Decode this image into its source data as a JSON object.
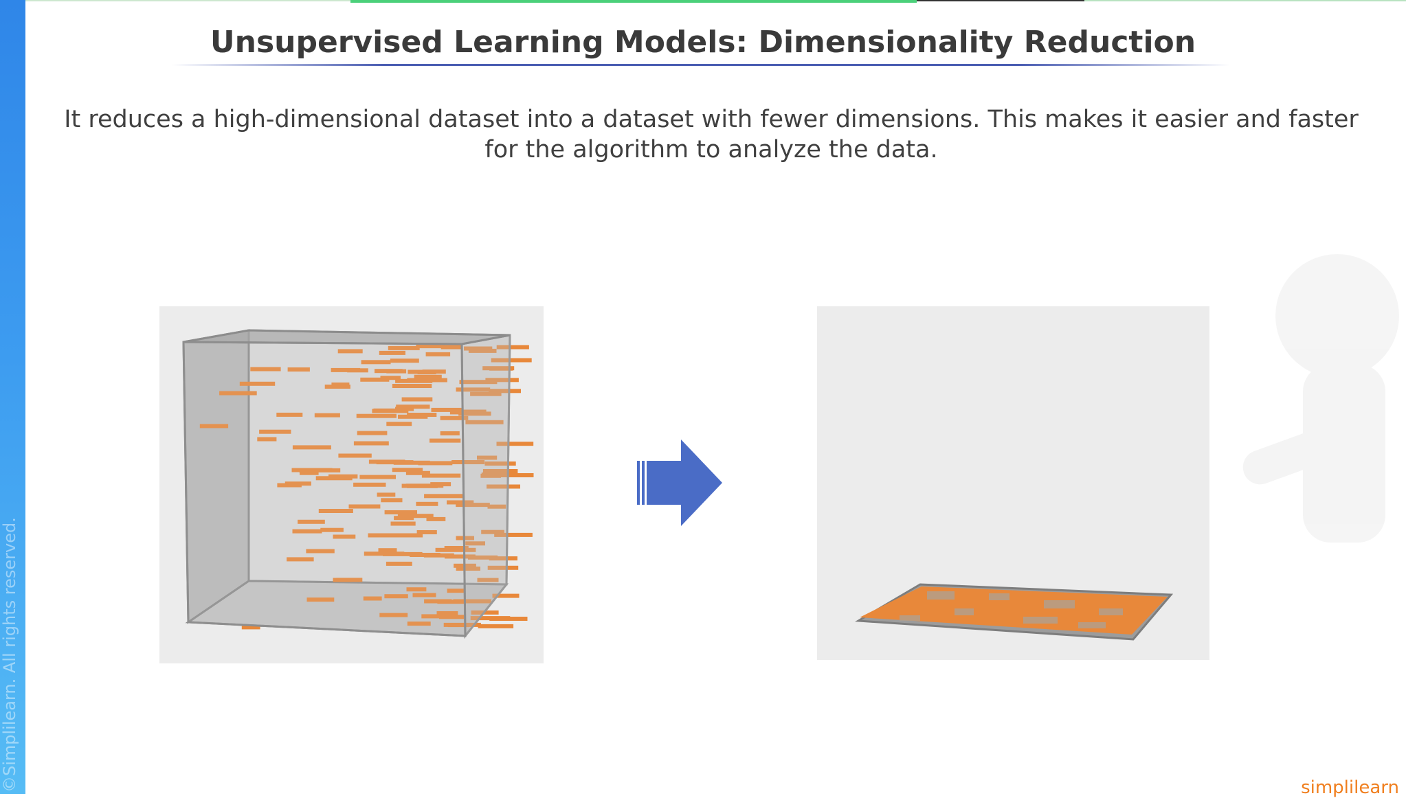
{
  "slide": {
    "title": "Unsupervised Learning Models: Dimensionality Reduction",
    "description": "It reduces a high-dimensional dataset into a dataset with fewer dimensions. This makes it easier and faster for the algorithm to analyze the data.",
    "copyright": "©Simplilearn. All rights reserved.",
    "brand": "simplilearn"
  },
  "colors": {
    "accent_blue": "#4a6cc6",
    "data_orange": "#e8883a",
    "sidebar_blue": "#3d9cf0"
  },
  "icons": {
    "transform_arrow": "right-arrow-icon",
    "cube": "3d-box-icon",
    "plane": "2d-plane-icon"
  }
}
